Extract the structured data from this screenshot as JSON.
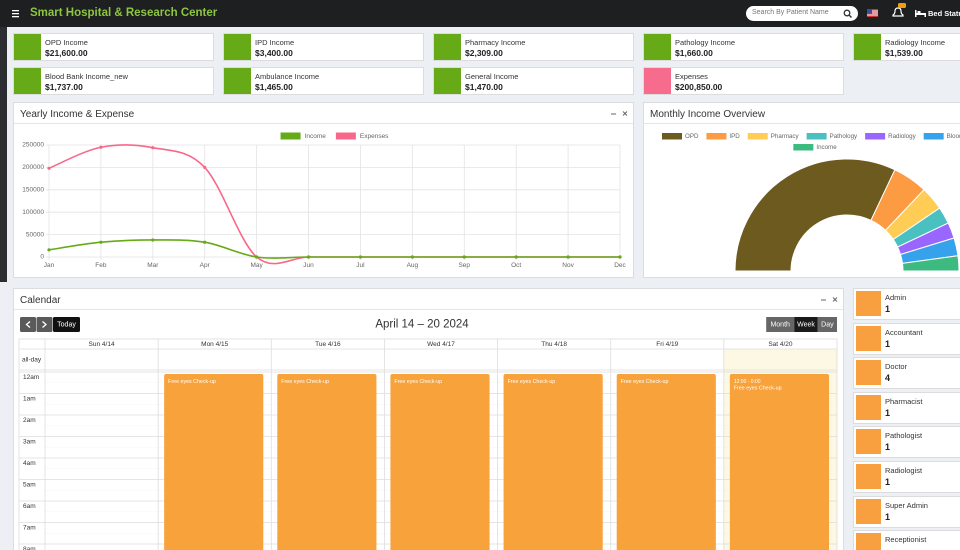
{
  "header": {
    "title": "Smart Hospital & Research Center",
    "search_placeholder": "Search By Patient Name",
    "bed_status": "Bed Status"
  },
  "income_cards": [
    {
      "label": "OPD Income",
      "amount": "$21,600.00",
      "icon_color": "#66aa18"
    },
    {
      "label": "IPD Income",
      "amount": "$3,400.00",
      "icon_color": "#66aa18"
    },
    {
      "label": "Pharmacy Income",
      "amount": "$2,309.00",
      "icon_color": "#66aa18"
    },
    {
      "label": "Pathology Income",
      "amount": "$1,660.00",
      "icon_color": "#66aa18"
    },
    {
      "label": "Radiology Income",
      "amount": "$1,539.00",
      "icon_color": "#66aa18"
    },
    {
      "label": "Blood Bank Income_new",
      "amount": "$1,737.00",
      "icon_color": "#66aa18"
    },
    {
      "label": "Ambulance Income",
      "amount": "$1,465.00",
      "icon_color": "#66aa18"
    },
    {
      "label": "General Income",
      "amount": "$1,470.00",
      "icon_color": "#66aa18"
    },
    {
      "label": "Expenses",
      "amount": "$200,850.00",
      "icon_color": "#f76c8c"
    }
  ],
  "chart_data": [
    {
      "type": "line",
      "title": "Yearly Income & Expense",
      "categories": [
        "Jan",
        "Feb",
        "Mar",
        "Apr",
        "May",
        "Jun",
        "Jul",
        "Aug",
        "Sep",
        "Oct",
        "Nov",
        "Dec"
      ],
      "series": [
        {
          "name": "Income",
          "color": "#66aa18",
          "values": [
            16000,
            33000,
            38000,
            33000,
            0,
            0,
            0,
            0,
            0,
            0,
            0,
            0
          ]
        },
        {
          "name": "Expenses",
          "color": "#f7688a",
          "values": [
            198000,
            245000,
            244000,
            200000,
            0,
            0,
            0,
            0,
            0,
            0,
            0,
            0
          ]
        }
      ],
      "ylim": [
        0,
        250000
      ],
      "yticks": [
        0,
        50000,
        100000,
        150000,
        200000,
        250000
      ],
      "grid": true,
      "legend": "top"
    },
    {
      "type": "doughnut",
      "title": "Monthly Income Overview",
      "half": true,
      "legend": "top",
      "categories": [
        "OPD",
        "IPD",
        "Pharmacy",
        "Pathology",
        "Radiology",
        "Blood Bank",
        "Income"
      ],
      "values": [
        21600,
        3400,
        2309,
        1660,
        1539,
        1737,
        1470
      ],
      "colors": [
        "#6d5a1f",
        "#fd9b42",
        "#ffcd56",
        "#4bc0c0",
        "#9966ff",
        "#36a2eb",
        "#3dba7f"
      ]
    }
  ],
  "calendar": {
    "title": "Calendar",
    "today": "Today",
    "range_title": "April 14 – 20 2024",
    "views": [
      {
        "label": "Month"
      },
      {
        "label": "Week",
        "active": true
      },
      {
        "label": "Day"
      }
    ],
    "all_day": "all-day",
    "days": [
      {
        "label": "Sun 4/14"
      },
      {
        "label": "Mon 4/15",
        "event": {
          "title": "Free eyes Check-up"
        }
      },
      {
        "label": "Tue 4/16",
        "event": {
          "title": "Free eyes Check-up"
        }
      },
      {
        "label": "Wed 4/17",
        "event": {
          "title": "Free eyes Check-up"
        }
      },
      {
        "label": "Thu 4/18",
        "event": {
          "title": "Free eyes Check-up"
        }
      },
      {
        "label": "Fri 4/19",
        "event": {
          "title": "Free eyes Check-up"
        }
      },
      {
        "label": "Sat 4/20",
        "highlighted": true,
        "event": {
          "time": "12:00 - 0:00",
          "title": "Free eyes Check-up"
        }
      }
    ],
    "times": [
      "12am",
      "1am",
      "2am",
      "3am",
      "4am",
      "5am",
      "6am",
      "7am",
      "8am"
    ]
  },
  "staff": [
    {
      "role": "Admin",
      "count": "1"
    },
    {
      "role": "Accountant",
      "count": "1"
    },
    {
      "role": "Doctor",
      "count": "4"
    },
    {
      "role": "Pharmacist",
      "count": "1"
    },
    {
      "role": "Pathologist",
      "count": "1"
    },
    {
      "role": "Radiologist",
      "count": "1"
    },
    {
      "role": "Super Admin",
      "count": "1"
    },
    {
      "role": "Receptionist"
    }
  ]
}
